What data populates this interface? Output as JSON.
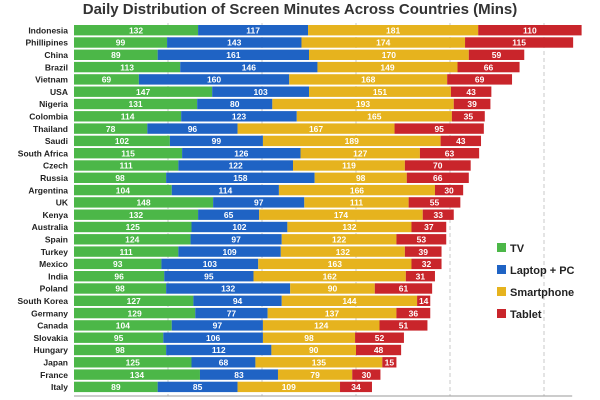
{
  "chart_data": {
    "type": "bar",
    "orientation": "horizontal",
    "stacked": true,
    "title": "Daily Distribution of Screen Minutes Across Countries (Mins)",
    "xlabel": "",
    "ylabel": "",
    "xlim": [
      0,
      530
    ],
    "xticks": [
      100,
      200,
      300,
      400,
      500
    ],
    "grid": "vertical dashed",
    "legend_position": "right",
    "categories": [
      "Indonesia",
      "Phillipines",
      "China",
      "Brazil",
      "Vietnam",
      "USA",
      "Nigeria",
      "Colombia",
      "Thailand",
      "Saudi",
      "South Africa",
      "Czech",
      "Russia",
      "Argentina",
      "UK",
      "Kenya",
      "Australia",
      "Spain",
      "Turkey",
      "Mexico",
      "India",
      "Poland",
      "South Korea",
      "Germany",
      "Canada",
      "Slovakia",
      "Hungary",
      "Japan",
      "France",
      "Italy"
    ],
    "series": [
      {
        "name": "TV",
        "color": "#4cb748",
        "values": [
          132,
          99,
          89,
          113,
          69,
          147,
          131,
          114,
          78,
          102,
          115,
          111,
          98,
          104,
          148,
          132,
          125,
          124,
          111,
          93,
          96,
          98,
          127,
          129,
          104,
          95,
          98,
          125,
          134,
          89
        ]
      },
      {
        "name": "Laptop + PC",
        "color": "#1f63c4",
        "values": [
          117,
          143,
          161,
          146,
          160,
          103,
          80,
          123,
          96,
          99,
          126,
          122,
          158,
          114,
          97,
          65,
          102,
          97,
          109,
          103,
          95,
          132,
          94,
          77,
          97,
          106,
          112,
          68,
          83,
          85
        ]
      },
      {
        "name": "Smartphone",
        "color": "#e6b31e",
        "values": [
          181,
          174,
          170,
          149,
          168,
          151,
          193,
          165,
          167,
          189,
          127,
          119,
          98,
          166,
          111,
          174,
          132,
          122,
          132,
          163,
          162,
          90,
          144,
          137,
          124,
          98,
          90,
          135,
          79,
          109
        ]
      },
      {
        "name": "Tablet",
        "color": "#c9252b",
        "values": [
          110,
          115,
          59,
          66,
          69,
          43,
          39,
          35,
          95,
          43,
          63,
          70,
          66,
          30,
          55,
          33,
          37,
          53,
          39,
          32,
          31,
          61,
          14,
          36,
          51,
          52,
          48,
          15,
          30,
          34
        ]
      }
    ]
  }
}
